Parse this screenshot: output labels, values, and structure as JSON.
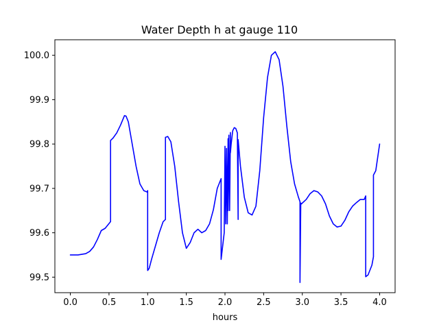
{
  "chart_data": {
    "type": "line",
    "title": "Water Depth h at gauge 110",
    "xlabel": "hours",
    "ylabel": "",
    "xlim": [
      -0.2,
      4.2
    ],
    "ylim": [
      99.465,
      100.035
    ],
    "x_ticks": [
      0.0,
      0.5,
      1.0,
      1.5,
      2.0,
      2.5,
      3.0,
      3.5,
      4.0
    ],
    "x_tick_labels": [
      "0.0",
      "0.5",
      "1.0",
      "1.5",
      "2.0",
      "2.5",
      "3.0",
      "3.5",
      "4.0"
    ],
    "y_ticks": [
      99.5,
      99.6,
      99.7,
      99.8,
      99.9,
      100.0
    ],
    "y_tick_labels": [
      "99.5",
      "99.6",
      "99.7",
      "99.8",
      "99.9",
      "100.0"
    ],
    "grid": false,
    "series": [
      {
        "color": "#0000ff",
        "x": [
          0.0,
          0.1,
          0.2,
          0.25,
          0.3,
          0.35,
          0.4,
          0.45,
          0.52,
          0.52,
          0.55,
          0.6,
          0.65,
          0.7,
          0.72,
          0.75,
          0.8,
          0.85,
          0.9,
          0.95,
          0.99,
          1.0,
          1.0,
          1.02,
          1.05,
          1.1,
          1.15,
          1.2,
          1.23,
          1.23,
          1.26,
          1.3,
          1.35,
          1.4,
          1.45,
          1.5,
          1.55,
          1.6,
          1.65,
          1.7,
          1.75,
          1.8,
          1.85,
          1.9,
          1.95,
          1.95,
          1.99,
          2.0,
          2.01,
          2.02,
          2.03,
          2.04,
          2.04,
          2.05,
          2.06,
          2.07,
          2.07,
          2.08,
          2.1,
          2.12,
          2.14,
          2.16,
          2.17,
          2.17,
          2.2,
          2.25,
          2.3,
          2.35,
          2.4,
          2.45,
          2.5,
          2.55,
          2.6,
          2.65,
          2.7,
          2.75,
          2.8,
          2.85,
          2.9,
          2.95,
          2.97,
          2.97,
          2.98,
          2.99,
          3.0,
          3.05,
          3.1,
          3.15,
          3.2,
          3.25,
          3.3,
          3.35,
          3.4,
          3.45,
          3.5,
          3.55,
          3.6,
          3.65,
          3.7,
          3.75,
          3.8,
          3.82,
          3.82,
          3.85,
          3.9,
          3.92,
          3.92,
          3.95,
          4.0
        ],
        "y": [
          99.55,
          99.55,
          99.553,
          99.558,
          99.568,
          99.585,
          99.605,
          99.61,
          99.625,
          99.808,
          99.813,
          99.825,
          99.843,
          99.864,
          99.863,
          99.85,
          99.8,
          99.75,
          99.71,
          99.695,
          99.692,
          99.695,
          99.515,
          99.52,
          99.54,
          99.57,
          99.6,
          99.625,
          99.63,
          99.815,
          99.817,
          99.805,
          99.75,
          99.67,
          99.6,
          99.565,
          99.578,
          99.6,
          99.608,
          99.6,
          99.605,
          99.62,
          99.652,
          99.7,
          99.722,
          99.54,
          99.6,
          99.795,
          99.62,
          99.79,
          99.62,
          99.812,
          99.65,
          99.82,
          99.65,
          99.826,
          99.78,
          99.8,
          99.83,
          99.837,
          99.835,
          99.825,
          99.63,
          99.81,
          99.75,
          99.68,
          99.645,
          99.64,
          99.66,
          99.74,
          99.86,
          99.95,
          100.0,
          100.008,
          99.99,
          99.93,
          99.84,
          99.76,
          99.71,
          99.68,
          99.67,
          99.488,
          99.667,
          99.665,
          99.667,
          99.675,
          99.688,
          99.695,
          99.692,
          99.683,
          99.665,
          99.638,
          99.62,
          99.613,
          99.615,
          99.628,
          99.647,
          99.66,
          99.668,
          99.675,
          99.675,
          99.683,
          99.501,
          99.505,
          99.527,
          99.546,
          99.73,
          99.74,
          99.8
        ]
      }
    ]
  }
}
